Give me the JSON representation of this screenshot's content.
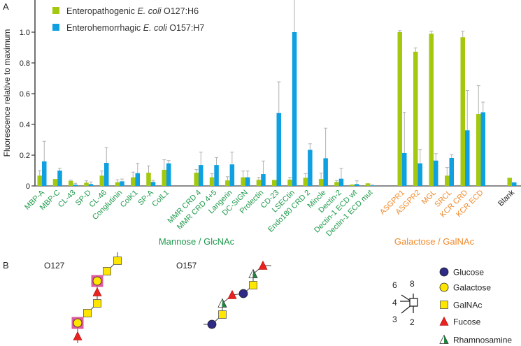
{
  "panel_labels": {
    "a": "A",
    "b": "B"
  },
  "chart_data": {
    "type": "bar",
    "ylabel": "Fluorescence relative to maximum",
    "xlabel": "",
    "ylim": [
      0,
      1.2
    ],
    "yticks": [
      0,
      0.2,
      0.4,
      0.6,
      0.8,
      1.0
    ],
    "ytick_labels": [
      "0",
      "0.2",
      "0.4",
      "0.6",
      "0.8",
      "1.0"
    ],
    "grid": false,
    "legend_position": "top-left",
    "groups": [
      {
        "label": "Mannose / GlcNAc",
        "color": "#1f9a4c"
      },
      {
        "label": "Galactose / GalNAc",
        "color": "#f08a2c"
      },
      {
        "label": "",
        "color": "#222222"
      }
    ],
    "categories": [
      "MBP-A",
      "MBP-C",
      "CL-43",
      "SP-D",
      "CL-46",
      "Conglutinin",
      "ColK1",
      "SP-A",
      "ColL1",
      "MMR CRD 4",
      "MMR CRD 4+5",
      "Langerin",
      "DC-SIGN",
      "Prolectin",
      "CD-23",
      "LSECtin",
      "Endo180 CRD 2",
      "Mincle",
      "Dectin-2",
      "Dectin-1 ECD wt",
      "Dectin-1 ECD mut",
      "ASGPR1",
      "ASGPR2",
      "MGL",
      "SRCL",
      "KCR CRD",
      "KCR ECD",
      "Blank"
    ],
    "category_group": [
      0,
      0,
      0,
      0,
      0,
      0,
      0,
      0,
      0,
      0,
      0,
      0,
      0,
      0,
      0,
      0,
      0,
      0,
      0,
      0,
      0,
      1,
      1,
      1,
      1,
      1,
      1,
      2
    ],
    "series": [
      {
        "name": "Enteropathogenic E. coli O127:H6",
        "name_parts": [
          "Enteropathogenic ",
          "E. coli",
          " O127:H6"
        ],
        "color": "#a3c80e",
        "values": [
          0.067,
          0.045,
          0.033,
          0.021,
          0.067,
          0.024,
          0.056,
          0.086,
          0.105,
          0.086,
          0.056,
          0.036,
          0.056,
          0.04,
          0.039,
          0.041,
          0.053,
          0.045,
          0.026,
          0.009,
          0.017,
          1.0,
          0.873,
          0.99,
          0.067,
          0.967,
          0.468,
          0.053
        ],
        "error_upper": [
          0.1,
          0.045,
          0.038,
          0.033,
          0.097,
          0.04,
          0.09,
          0.13,
          0.17,
          0.106,
          0.08,
          0.06,
          0.097,
          0.056,
          0.039,
          0.056,
          0.08,
          0.083,
          0.035,
          0.009,
          0.017,
          1.01,
          0.897,
          1.006,
          0.12,
          1.006,
          0.652,
          0.053
        ]
      },
      {
        "name": "Enterohemorrhagic E. coli O157:H7",
        "name_parts": [
          "Enterohemorrhagic ",
          "E. coli",
          " O157:H7"
        ],
        "color": "#0ea0e0",
        "values": [
          0.16,
          0.1,
          0.008,
          0.012,
          0.15,
          0.03,
          0.083,
          0.026,
          0.147,
          0.136,
          0.136,
          0.14,
          0.056,
          0.077,
          0.474,
          1.0,
          0.235,
          0.18,
          0.047,
          0.012,
          0.003,
          0.214,
          0.147,
          0.165,
          0.182,
          0.362,
          0.479,
          0.023
        ],
        "error_upper": [
          0.29,
          0.115,
          0.017,
          0.026,
          0.25,
          0.045,
          0.147,
          0.036,
          0.165,
          0.22,
          0.185,
          0.22,
          0.097,
          0.162,
          0.677,
          1.25,
          0.274,
          0.376,
          0.114,
          0.033,
          0.006,
          0.479,
          0.238,
          0.21,
          0.203,
          0.62,
          0.545,
          0.023
        ]
      }
    ]
  },
  "panel_b": {
    "structures": [
      {
        "label": "O127"
      },
      {
        "label": "O157"
      }
    ],
    "linkage_numbers": [
      "6",
      "8",
      "4",
      "3",
      "2"
    ],
    "legend": [
      {
        "name": "Glucose",
        "shape": "circle",
        "color": "#2e2a86"
      },
      {
        "name": "Galactose",
        "shape": "circle",
        "color": "#ffe600"
      },
      {
        "name": "GalNAc",
        "shape": "square",
        "color": "#ffe600"
      },
      {
        "name": "Fucose",
        "shape": "triangle",
        "color": "#e8221e"
      },
      {
        "name": "Rhamnosamine",
        "shape": "half-triangle",
        "color": "#1f8a3c"
      }
    ],
    "highlight_color": "#e05aa0"
  }
}
